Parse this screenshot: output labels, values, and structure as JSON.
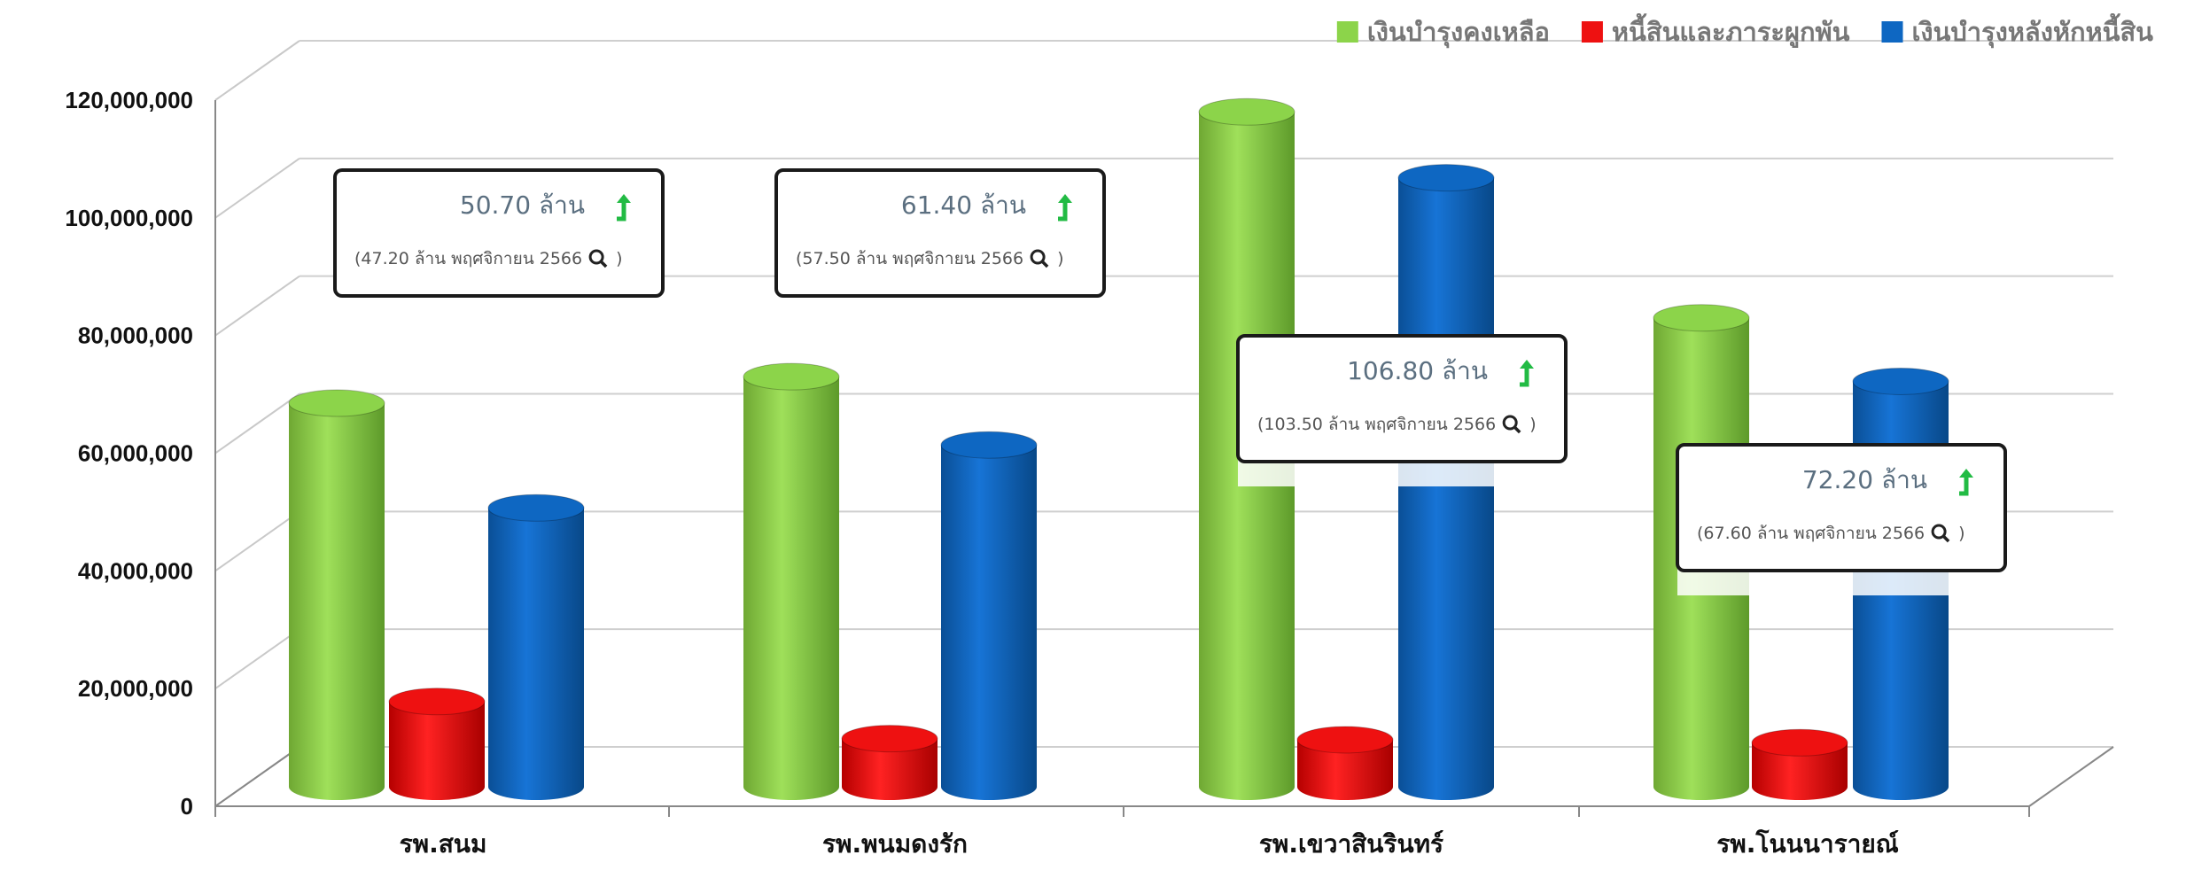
{
  "chart_data": {
    "type": "bar",
    "categories": [
      "รพ.สนม",
      "รพ.พนมดงรัก",
      "รพ.เขวาสินรินทร์",
      "รพ.โนนนารายณ์"
    ],
    "series": [
      {
        "name": "เงินบำรุงคงเหลือ",
        "color": "#8cd44a",
        "values": [
          68500000,
          73000000,
          118000000,
          83000000
        ]
      },
      {
        "name": "หนี้สินและภาระผูกพัน",
        "color": "#ee1111",
        "values": [
          17800000,
          11500000,
          11300000,
          10800000
        ]
      },
      {
        "name": "เงินบำรุงหลังหักหนี้สิน",
        "color": "#0e67c2",
        "values": [
          50700000,
          61400000,
          106800000,
          72200000
        ]
      }
    ],
    "yticks": [
      "0",
      "20,000,000",
      "40,000,000",
      "60,000,000",
      "80,000,000",
      "100,000,000",
      "120,000,000"
    ],
    "ylim": [
      0,
      120000000
    ],
    "grid": true,
    "legend_position": "top-right",
    "callouts": [
      {
        "main": "50.70 ล้าน",
        "sub": "(47.20 ล้าน พฤศจิกายน 2566",
        "close": ")",
        "trend": "up-arrow-icon"
      },
      {
        "main": "61.40 ล้าน",
        "sub": "(57.50 ล้าน พฤศจิกายน 2566",
        "close": ")",
        "trend": "up-arrow-icon"
      },
      {
        "main": "106.80 ล้าน",
        "sub": "(103.50 ล้าน พฤศจิกายน 2566",
        "close": ")",
        "trend": "up-arrow-icon"
      },
      {
        "main": "72.20 ล้าน",
        "sub": "(67.60 ล้าน พฤศจิกายน 2566",
        "close": ")",
        "trend": "up-arrow-icon"
      }
    ]
  }
}
